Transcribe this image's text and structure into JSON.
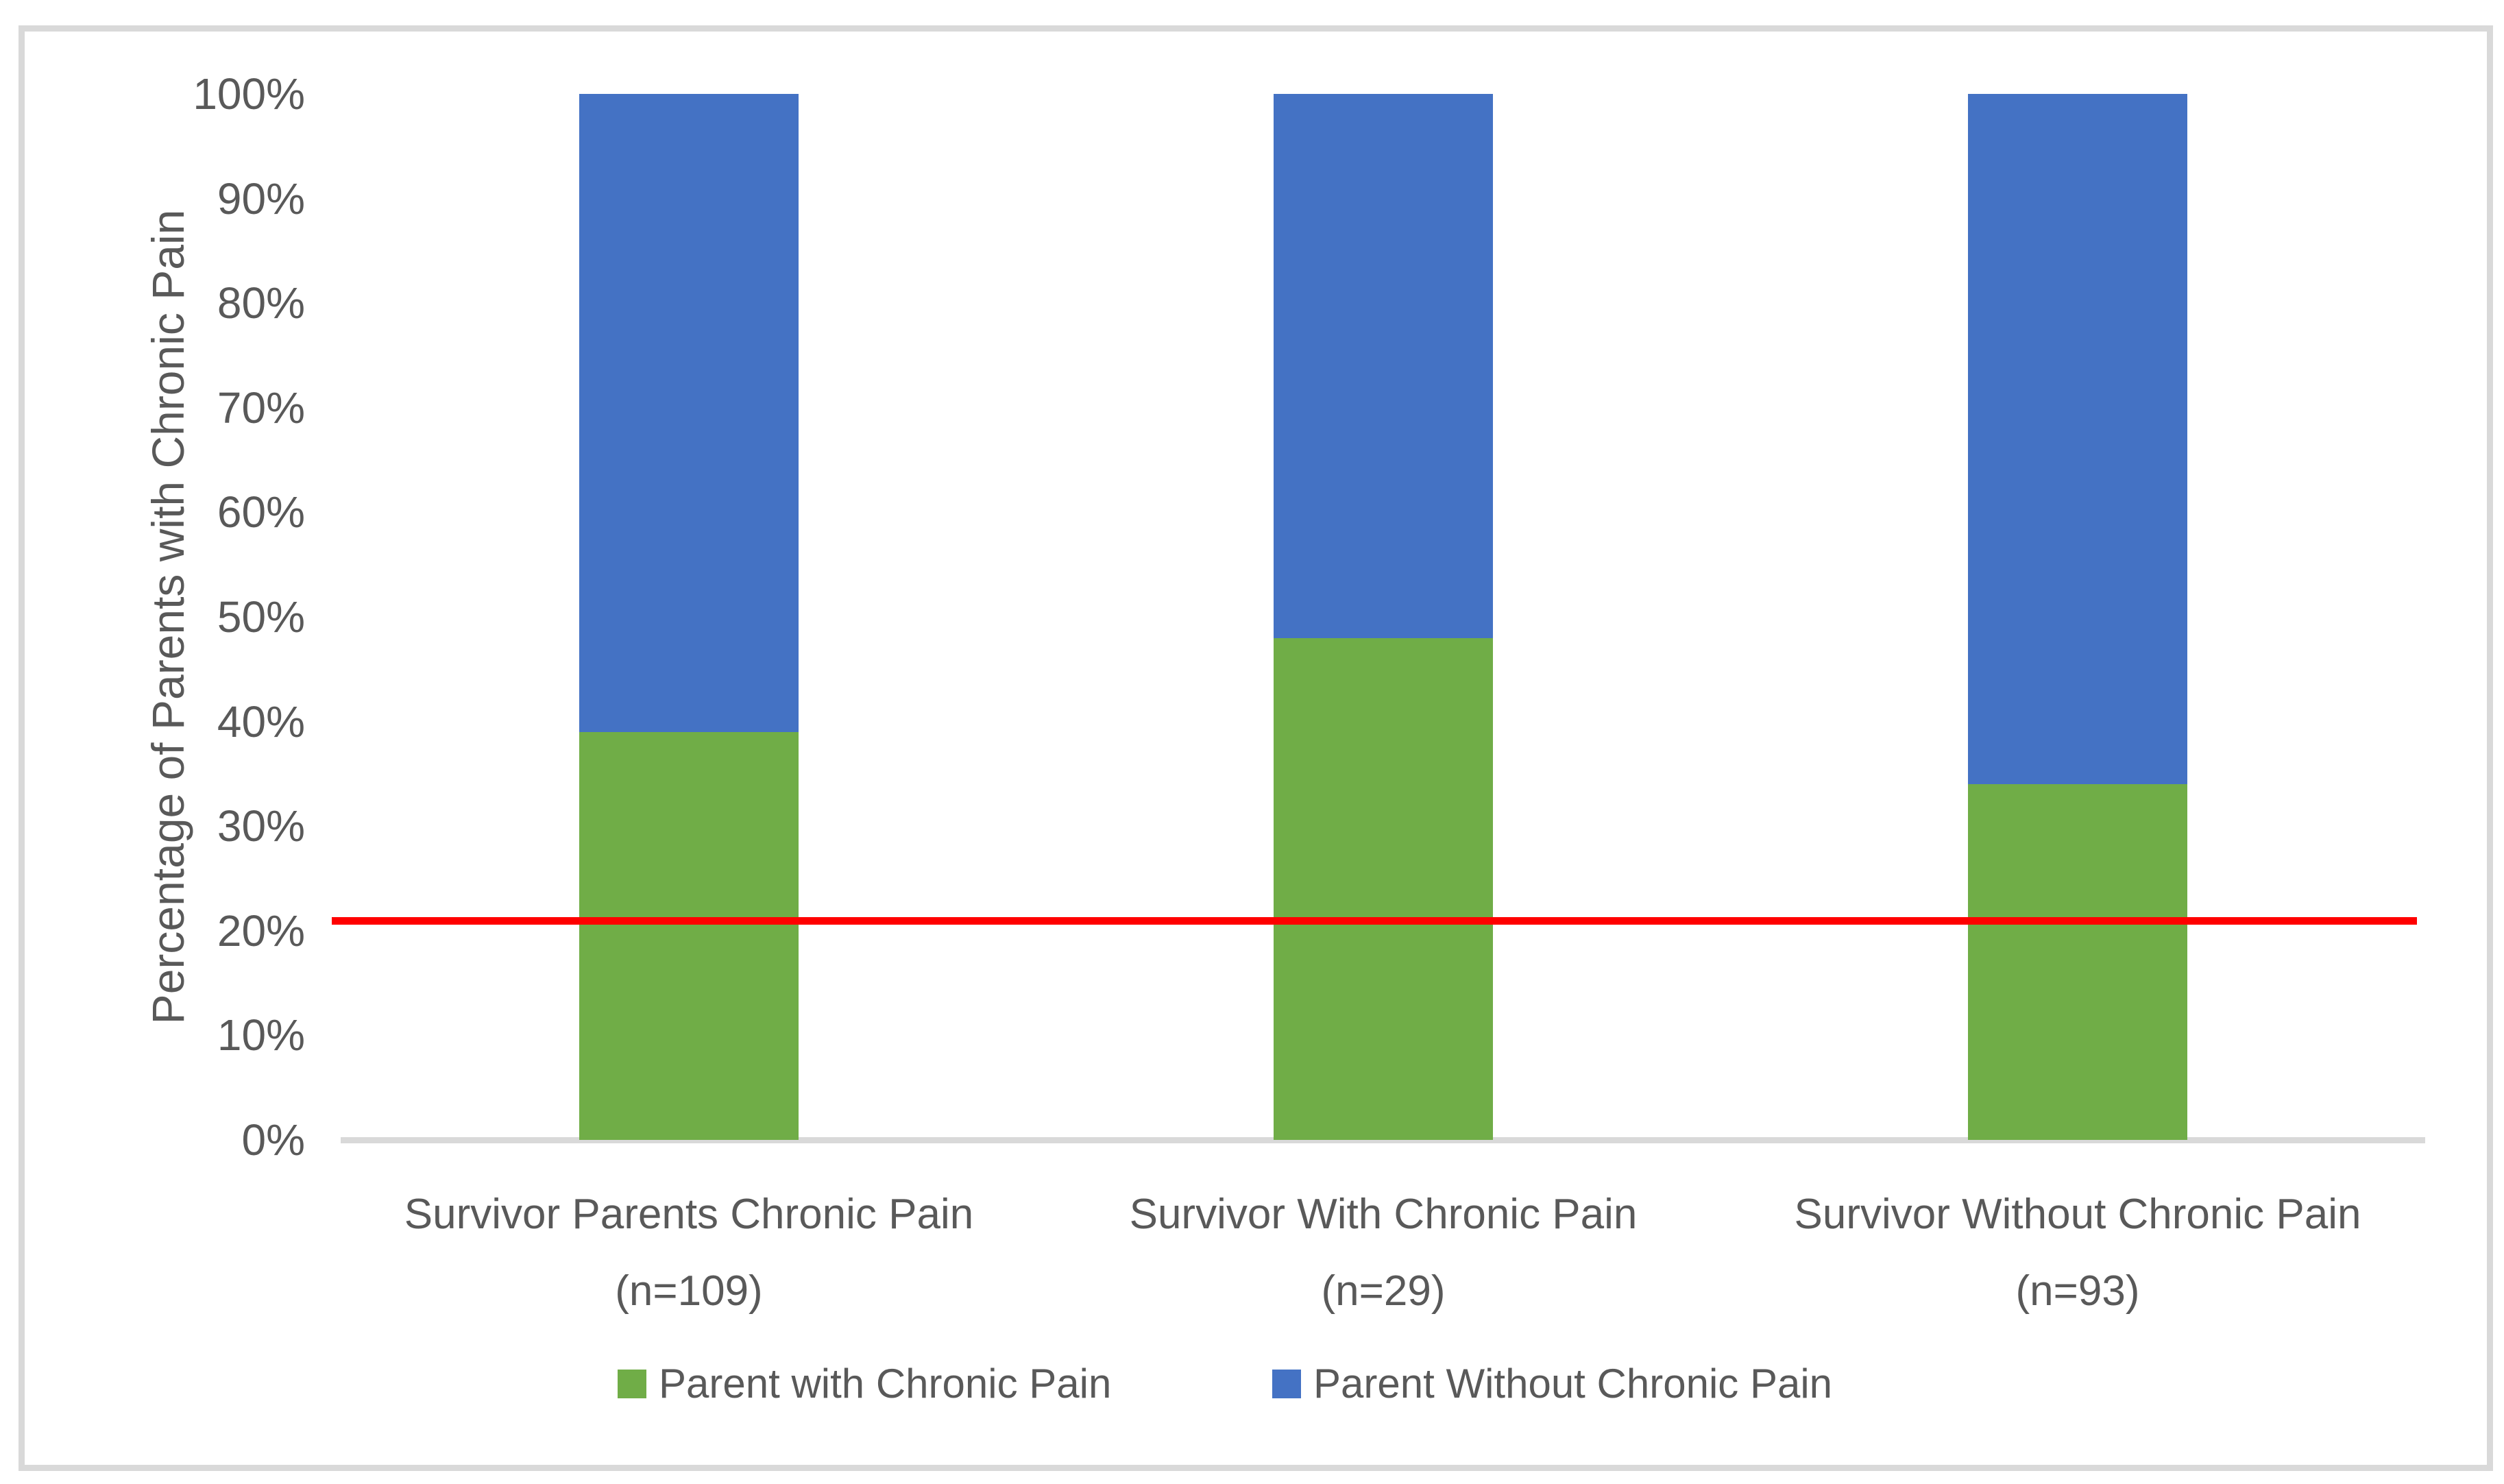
{
  "figure": {
    "background": "#ffffff",
    "border_color": "#d9d9d9",
    "text_color": "#595959",
    "axis_line_color": "#d9d9d9"
  },
  "chart_data": {
    "type": "bar",
    "stacked": true,
    "percent_stacked": true,
    "title": "",
    "ylabel": "Percentage of Parents with Chronic Pain",
    "xlabel": "",
    "ylim": [
      0,
      100
    ],
    "grid": false,
    "legend_position": "bottom",
    "y_ticks": [
      "0%",
      "10%",
      "20%",
      "30%",
      "40%",
      "50%",
      "60%",
      "70%",
      "80%",
      "90%",
      "100%"
    ],
    "categories": [
      {
        "label": "Survivor Parents Chronic Pain",
        "sub_label": "(n=109)"
      },
      {
        "label": "Survivor With Chronic Pain",
        "sub_label": "(n=29)"
      },
      {
        "label": "Survivor Without Chronic Pain",
        "sub_label": "(n=93)"
      }
    ],
    "series": [
      {
        "name": "Parent with Chronic Pain",
        "color": "#70AD47",
        "values": [
          39,
          48,
          34
        ]
      },
      {
        "name": "Parent Without Chronic Pain",
        "color": "#4472C4",
        "values": [
          61,
          52,
          66
        ]
      }
    ],
    "reference_line": {
      "value": 21,
      "color": "#FF0000"
    }
  }
}
